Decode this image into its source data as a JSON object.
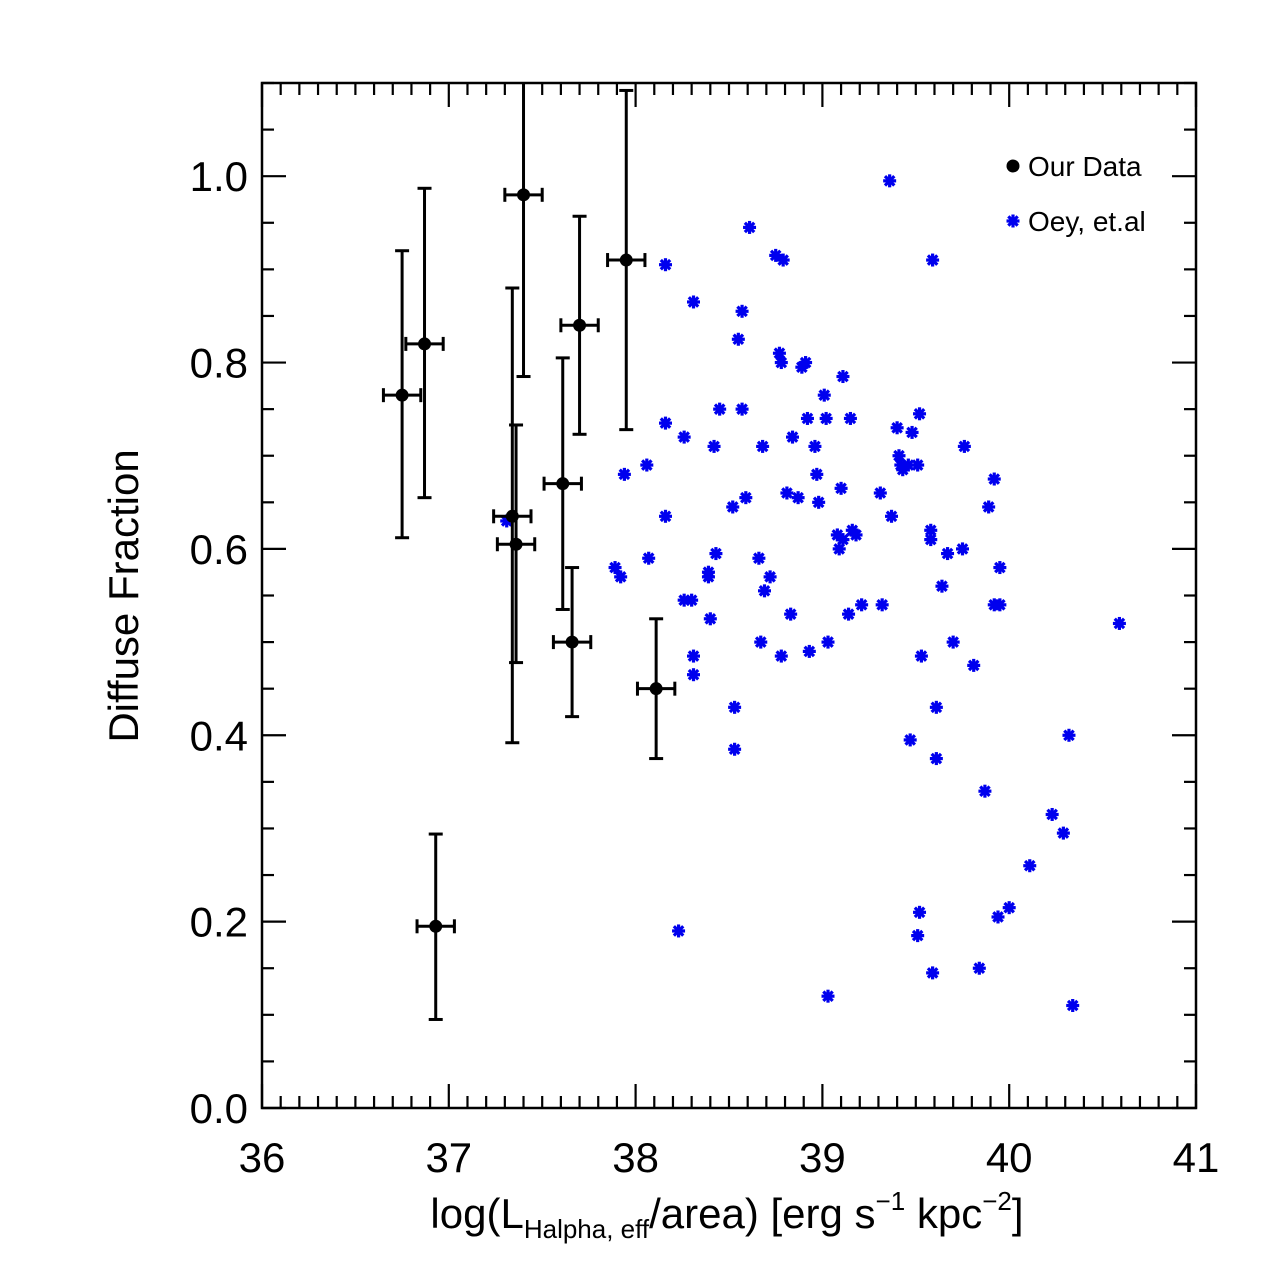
{
  "chart_data": {
    "type": "scatter",
    "title": "",
    "xlabel": {
      "prefix": "log(L",
      "subscript": "Halpha, eff",
      "middle": "/area) [erg s",
      "sup1": "−1",
      "middle2": " kpc",
      "sup2": "−2",
      "suffix": "]"
    },
    "ylabel": "Diffuse Fraction",
    "xlim": [
      36,
      41
    ],
    "ylim": [
      0.0,
      1.1
    ],
    "x_ticks": [
      {
        "value": 36,
        "label": "36"
      },
      {
        "value": 37,
        "label": "37"
      },
      {
        "value": 38,
        "label": "38"
      },
      {
        "value": 39,
        "label": "39"
      },
      {
        "value": 40,
        "label": "40"
      },
      {
        "value": 41,
        "label": "41"
      }
    ],
    "y_ticks": [
      {
        "value": 0.0,
        "label": "0.0"
      },
      {
        "value": 0.2,
        "label": "0.2"
      },
      {
        "value": 0.4,
        "label": "0.4"
      },
      {
        "value": 0.6,
        "label": "0.6"
      },
      {
        "value": 0.8,
        "label": "0.8"
      },
      {
        "value": 1.0,
        "label": "1.0"
      }
    ],
    "legend_position": "top-right",
    "series": [
      {
        "name": "Our Data",
        "marker": "filled-circle",
        "color": "#000000",
        "points": [
          {
            "x": 36.75,
            "y": 0.765,
            "xerr": 0.1,
            "y_low": 0.612,
            "y_high": 0.92
          },
          {
            "x": 36.87,
            "y": 0.82,
            "xerr": 0.1,
            "y_low": 0.655,
            "y_high": 0.987
          },
          {
            "x": 36.93,
            "y": 0.195,
            "xerr": 0.1,
            "y_low": 0.095,
            "y_high": 0.294
          },
          {
            "x": 37.34,
            "y": 0.635,
            "xerr": 0.1,
            "y_low": 0.392,
            "y_high": 0.88
          },
          {
            "x": 37.36,
            "y": 0.605,
            "xerr": 0.1,
            "y_low": 0.478,
            "y_high": 0.733
          },
          {
            "x": 37.4,
            "y": 0.98,
            "xerr": 0.1,
            "y_low": 0.785,
            "y_high": 1.1
          },
          {
            "x": 37.61,
            "y": 0.67,
            "xerr": 0.1,
            "y_low": 0.535,
            "y_high": 0.805
          },
          {
            "x": 37.66,
            "y": 0.5,
            "xerr": 0.1,
            "y_low": 0.42,
            "y_high": 0.58
          },
          {
            "x": 37.7,
            "y": 0.84,
            "xerr": 0.1,
            "y_low": 0.723,
            "y_high": 0.957
          },
          {
            "x": 37.95,
            "y": 0.91,
            "xerr": 0.1,
            "y_low": 0.728,
            "y_high": 1.092
          },
          {
            "x": 38.11,
            "y": 0.45,
            "xerr": 0.1,
            "y_low": 0.375,
            "y_high": 0.525
          }
        ]
      },
      {
        "name": "Oey, et.al",
        "marker": "asterisk",
        "color": "#0000ee",
        "points": [
          {
            "x": 37.31,
            "y": 0.63
          },
          {
            "x": 37.89,
            "y": 0.58
          },
          {
            "x": 37.92,
            "y": 0.57
          },
          {
            "x": 37.94,
            "y": 0.68
          },
          {
            "x": 38.06,
            "y": 0.69
          },
          {
            "x": 38.07,
            "y": 0.59
          },
          {
            "x": 38.16,
            "y": 0.905
          },
          {
            "x": 38.16,
            "y": 0.735
          },
          {
            "x": 38.16,
            "y": 0.635
          },
          {
            "x": 38.23,
            "y": 0.19
          },
          {
            "x": 38.26,
            "y": 0.72
          },
          {
            "x": 38.26,
            "y": 0.545
          },
          {
            "x": 38.3,
            "y": 0.545
          },
          {
            "x": 38.31,
            "y": 0.865
          },
          {
            "x": 38.31,
            "y": 0.485
          },
          {
            "x": 38.31,
            "y": 0.465
          },
          {
            "x": 38.39,
            "y": 0.57
          },
          {
            "x": 38.39,
            "y": 0.575
          },
          {
            "x": 38.4,
            "y": 0.525
          },
          {
            "x": 38.42,
            "y": 0.71
          },
          {
            "x": 38.43,
            "y": 0.595
          },
          {
            "x": 38.45,
            "y": 0.75
          },
          {
            "x": 38.52,
            "y": 0.645
          },
          {
            "x": 38.53,
            "y": 0.43
          },
          {
            "x": 38.53,
            "y": 0.385
          },
          {
            "x": 38.55,
            "y": 0.825
          },
          {
            "x": 38.57,
            "y": 0.855
          },
          {
            "x": 38.57,
            "y": 0.75
          },
          {
            "x": 38.59,
            "y": 0.655
          },
          {
            "x": 38.61,
            "y": 0.945
          },
          {
            "x": 38.66,
            "y": 0.59
          },
          {
            "x": 38.67,
            "y": 0.5
          },
          {
            "x": 38.68,
            "y": 0.71
          },
          {
            "x": 38.69,
            "y": 0.555
          },
          {
            "x": 38.72,
            "y": 0.57
          },
          {
            "x": 38.75,
            "y": 0.915
          },
          {
            "x": 38.77,
            "y": 0.81
          },
          {
            "x": 38.79,
            "y": 0.91
          },
          {
            "x": 38.78,
            "y": 0.8
          },
          {
            "x": 38.78,
            "y": 0.485
          },
          {
            "x": 38.81,
            "y": 0.66
          },
          {
            "x": 38.83,
            "y": 0.53
          },
          {
            "x": 38.84,
            "y": 0.72
          },
          {
            "x": 38.87,
            "y": 0.655
          },
          {
            "x": 38.89,
            "y": 0.795
          },
          {
            "x": 38.91,
            "y": 0.8
          },
          {
            "x": 38.92,
            "y": 0.74
          },
          {
            "x": 38.93,
            "y": 0.49
          },
          {
            "x": 38.96,
            "y": 0.71
          },
          {
            "x": 38.97,
            "y": 0.68
          },
          {
            "x": 38.98,
            "y": 0.65
          },
          {
            "x": 39.01,
            "y": 0.765
          },
          {
            "x": 39.02,
            "y": 0.74
          },
          {
            "x": 39.03,
            "y": 0.5
          },
          {
            "x": 39.03,
            "y": 0.12
          },
          {
            "x": 39.08,
            "y": 0.615
          },
          {
            "x": 39.09,
            "y": 0.6
          },
          {
            "x": 39.1,
            "y": 0.665
          },
          {
            "x": 39.11,
            "y": 0.785
          },
          {
            "x": 39.11,
            "y": 0.61
          },
          {
            "x": 39.14,
            "y": 0.53
          },
          {
            "x": 39.15,
            "y": 0.74
          },
          {
            "x": 39.16,
            "y": 0.62
          },
          {
            "x": 39.18,
            "y": 0.615
          },
          {
            "x": 39.21,
            "y": 0.54
          },
          {
            "x": 39.31,
            "y": 0.66
          },
          {
            "x": 39.32,
            "y": 0.54
          },
          {
            "x": 39.36,
            "y": 0.995
          },
          {
            "x": 39.37,
            "y": 0.635
          },
          {
            "x": 39.4,
            "y": 0.73
          },
          {
            "x": 39.41,
            "y": 0.7
          },
          {
            "x": 39.42,
            "y": 0.69
          },
          {
            "x": 39.43,
            "y": 0.685
          },
          {
            "x": 39.46,
            "y": 0.69
          },
          {
            "x": 39.47,
            "y": 0.395
          },
          {
            "x": 39.48,
            "y": 0.725
          },
          {
            "x": 39.51,
            "y": 0.69
          },
          {
            "x": 39.52,
            "y": 0.745
          },
          {
            "x": 39.52,
            "y": 0.21
          },
          {
            "x": 39.51,
            "y": 0.185
          },
          {
            "x": 39.53,
            "y": 0.485
          },
          {
            "x": 39.58,
            "y": 0.62
          },
          {
            "x": 39.58,
            "y": 0.61
          },
          {
            "x": 39.59,
            "y": 0.91
          },
          {
            "x": 39.59,
            "y": 0.145
          },
          {
            "x": 39.61,
            "y": 0.43
          },
          {
            "x": 39.61,
            "y": 0.375
          },
          {
            "x": 39.64,
            "y": 0.56
          },
          {
            "x": 39.67,
            "y": 0.595
          },
          {
            "x": 39.7,
            "y": 0.5
          },
          {
            "x": 39.75,
            "y": 0.6
          },
          {
            "x": 39.76,
            "y": 0.71
          },
          {
            "x": 39.81,
            "y": 0.475
          },
          {
            "x": 39.84,
            "y": 0.15
          },
          {
            "x": 39.87,
            "y": 0.34
          },
          {
            "x": 39.89,
            "y": 0.645
          },
          {
            "x": 39.92,
            "y": 0.675
          },
          {
            "x": 39.92,
            "y": 0.54
          },
          {
            "x": 39.94,
            "y": 0.205
          },
          {
            "x": 39.95,
            "y": 0.58
          },
          {
            "x": 39.95,
            "y": 0.54
          },
          {
            "x": 40.0,
            "y": 0.215
          },
          {
            "x": 40.11,
            "y": 0.26
          },
          {
            "x": 40.23,
            "y": 0.315
          },
          {
            "x": 40.29,
            "y": 0.295
          },
          {
            "x": 40.32,
            "y": 0.4
          },
          {
            "x": 40.34,
            "y": 0.11
          },
          {
            "x": 40.59,
            "y": 0.52
          }
        ]
      }
    ]
  }
}
